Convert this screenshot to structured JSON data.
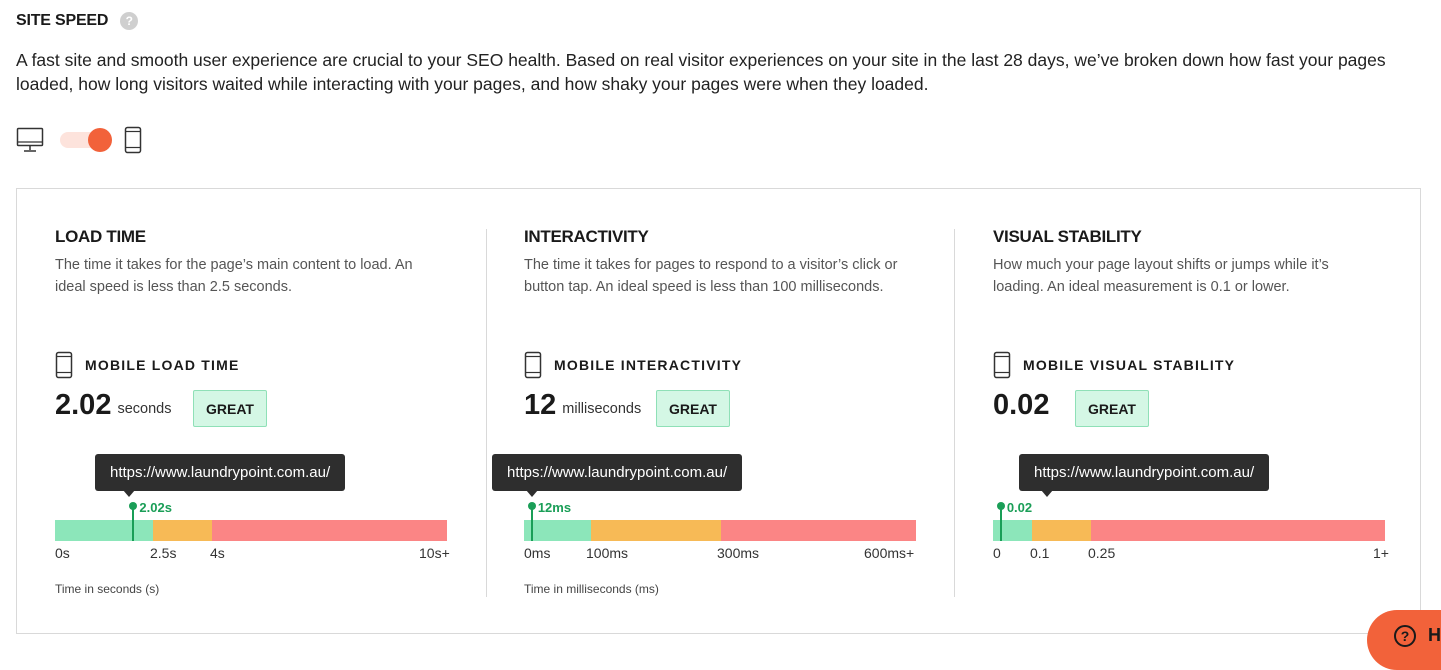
{
  "header": {
    "title": "SITE SPEED",
    "help_icon": "?"
  },
  "intro": "A fast site and smooth user experience are crucial to your SEO health. Based on real visitor experiences on your site in the last 28 days, we’ve broken down how fast your pages loaded, how long visitors waited while interacting with your pages, and how shaky your pages were when they loaded.",
  "device_toggle": {
    "left_icon": "desktop-icon",
    "right_icon": "mobile-icon",
    "selected": "mobile"
  },
  "colors": {
    "accent": "#f2623a",
    "good": "#8ce6ba",
    "needs_improvement": "#f7ba56",
    "poor": "#fb8585",
    "marker": "#1a9e57",
    "badge_bg": "#d4f7e5"
  },
  "sections": [
    {
      "title": "LOAD TIME",
      "description": "The time it takes for the page’s main content to load. An ideal speed is less than 2.5 seconds.",
      "metric_label": "MOBILE LOAD TIME",
      "value": "2.02",
      "unit": "seconds",
      "badge": "GREAT",
      "tooltip": "https://www.laundrypoint.com.au/",
      "marker_label": "2.02s",
      "marker_fraction": 0.2,
      "segments": [
        0.25,
        0.15,
        0.6
      ],
      "ticks": [
        "0s",
        "2.5s",
        "4s",
        "10s+"
      ],
      "axis_caption": "Time in seconds (s)"
    },
    {
      "title": "INTERACTIVITY",
      "description": "The time it takes for pages to respond to a visitor’s click or button tap. An ideal speed is less than 100 milliseconds.",
      "metric_label": "MOBILE INTERACTIVITY",
      "value": "12",
      "unit": "milliseconds",
      "badge": "GREAT",
      "tooltip": "https://www.laundrypoint.com.au/",
      "marker_label": "12ms",
      "marker_fraction": 0.02,
      "segments": [
        0.17,
        0.333,
        0.497
      ],
      "ticks": [
        "0ms",
        "100ms",
        "300ms",
        "600ms+"
      ],
      "axis_caption": "Time in milliseconds (ms)"
    },
    {
      "title": "VISUAL STABILITY",
      "description": "How much your page layout shifts or jumps while it’s loading. An ideal measurement is 0.1 or lower.",
      "metric_label": "MOBILE VISUAL STABILITY",
      "value": "0.02",
      "unit": "",
      "badge": "GREAT",
      "tooltip": "https://www.laundrypoint.com.au/",
      "marker_label": "0.02",
      "marker_fraction": 0.02,
      "segments": [
        0.1,
        0.15,
        0.75
      ],
      "ticks": [
        "0",
        "0.1",
        "0.25",
        "1+"
      ],
      "axis_caption": ""
    }
  ],
  "help_widget": {
    "label": "H",
    "icon": "?"
  }
}
